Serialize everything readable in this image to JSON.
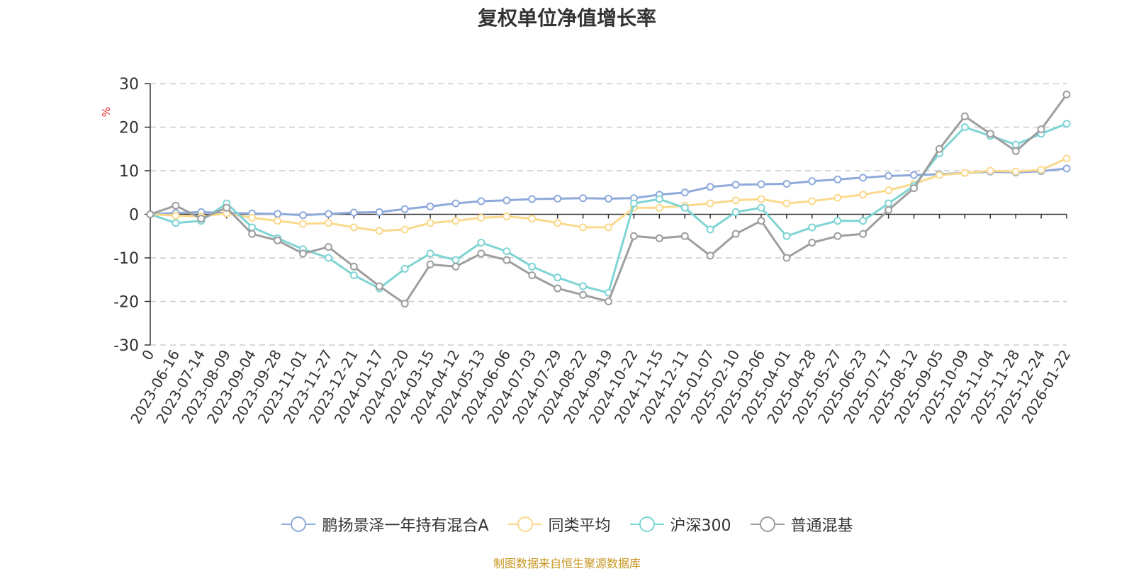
{
  "chart_data": {
    "type": "line",
    "title": "复权单位净值增长率",
    "ylabel": "%",
    "ylim": [
      -30,
      30
    ],
    "yticks": [
      30,
      20,
      10,
      0,
      -10,
      -20,
      -30
    ],
    "x_ticks": [
      "0",
      "2023-06-16",
      "2023-07-14",
      "2023-08-09",
      "2023-09-04",
      "2023-09-28",
      "2023-11-01",
      "2023-11-27",
      "2023-12-21",
      "2024-01-17",
      "2024-02-20",
      "2024-03-15",
      "2024-04-12",
      "2024-05-13",
      "2024-06-06",
      "2024-07-03",
      "2024-07-29",
      "2024-08-22",
      "2024-09-19",
      "2024-10-22",
      "2024-11-15",
      "2024-12-11",
      "2025-01-07",
      "2025-02-10",
      "2025-03-06",
      "2025-04-01",
      "2025-04-28",
      "2025-05-27",
      "2025-06-23",
      "2025-07-17",
      "2025-08-12",
      "2025-09-05",
      "2025-10-09",
      "2025-11-04",
      "2025-11-28",
      "2025-12-24",
      "2026-01-22"
    ],
    "grid": true,
    "legend_position": "bottom",
    "series": [
      {
        "name": "鹏扬景泽一年持有混合A",
        "color": "#8eaadb",
        "values": [
          0,
          0.3,
          0.5,
          0.3,
          0.2,
          0.1,
          -0.2,
          0.1,
          0.4,
          0.5,
          1.2,
          1.8,
          2.5,
          3.0,
          3.2,
          3.5,
          3.6,
          3.7,
          3.6,
          3.7,
          4.5,
          5.0,
          6.3,
          6.8,
          6.9,
          7.0,
          7.6,
          8.0,
          8.4,
          8.8,
          9.0,
          9.2,
          9.5,
          9.8,
          9.6,
          9.9,
          10.5
        ]
      },
      {
        "name": "同类平均",
        "color": "#fbd98c",
        "values": [
          0,
          -0.3,
          -0.5,
          0.2,
          -0.8,
          -1.5,
          -2.2,
          -2.0,
          -3.0,
          -3.8,
          -3.5,
          -2.0,
          -1.5,
          -0.8,
          -0.5,
          -1.0,
          -2.0,
          -3.0,
          -3.0,
          1.5,
          1.5,
          2.0,
          2.5,
          3.2,
          3.5,
          2.5,
          3.0,
          3.8,
          4.5,
          5.5,
          7.0,
          9.0,
          9.5,
          10.0,
          9.8,
          10.2,
          12.8
        ]
      },
      {
        "name": "沪深300",
        "color": "#7fd4d4",
        "values": [
          0,
          -2.0,
          -1.5,
          2.5,
          -3.0,
          -5.5,
          -8.0,
          -10.0,
          -14.0,
          -17.0,
          -12.5,
          -9.0,
          -10.5,
          -6.5,
          -8.5,
          -12.0,
          -14.5,
          -16.5,
          -18.0,
          2.5,
          3.5,
          1.5,
          -3.5,
          0.5,
          1.5,
          -5.0,
          -3.0,
          -1.5,
          -1.5,
          2.5,
          6.5,
          14.0,
          20.0,
          18.0,
          16.0,
          18.5,
          20.8
        ]
      },
      {
        "name": "普通混基",
        "color": "#9e9e9e",
        "values": [
          0,
          2.0,
          -1.0,
          1.5,
          -4.5,
          -6.0,
          -9.0,
          -7.5,
          -12.0,
          -16.5,
          -20.5,
          -11.5,
          -12.0,
          -9.0,
          -10.5,
          -14.0,
          -17.0,
          -18.5,
          -20.0,
          -5.0,
          -5.5,
          -5.0,
          -9.5,
          -4.5,
          -1.5,
          -10.0,
          -6.5,
          -5.0,
          -4.5,
          1.0,
          6.0,
          15.0,
          22.5,
          18.5,
          14.5,
          19.5,
          27.5
        ]
      }
    ]
  },
  "footer": {
    "source_note": "制图数据来自恒生聚源数据库",
    "source_color": "#c8961e"
  }
}
